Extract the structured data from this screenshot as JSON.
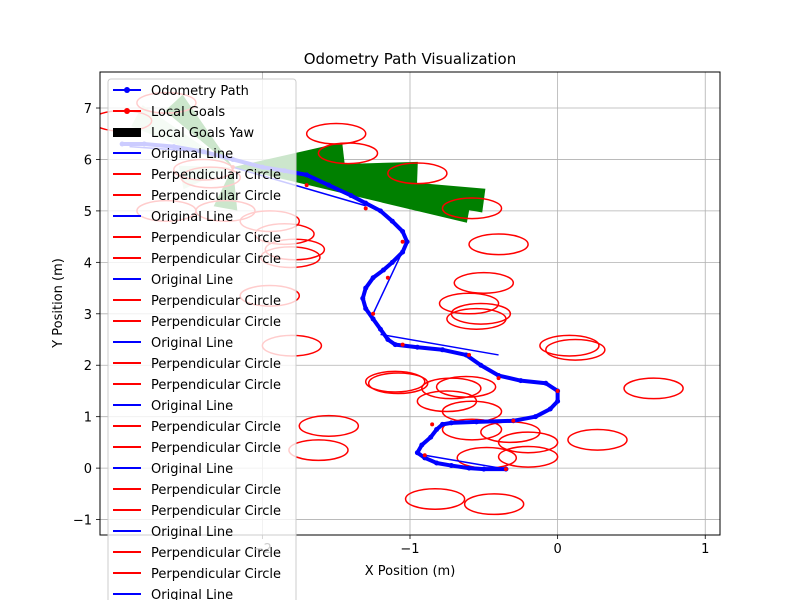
{
  "chart_data": {
    "type": "line",
    "title": "Odometry Path Visualization",
    "xlabel": "X Position (m)",
    "ylabel": "Y Position (m)",
    "xlim": [
      -3.1,
      1.1
    ],
    "ylim": [
      -1.3,
      7.7
    ],
    "x_ticks": [
      -2,
      -1,
      0,
      1
    ],
    "x_tick_labels": [
      "−2",
      "−1",
      "0",
      "1"
    ],
    "y_ticks": [
      -1,
      0,
      1,
      2,
      3,
      4,
      5,
      6,
      7
    ],
    "y_tick_labels": [
      "−1",
      "0",
      "1",
      "2",
      "3",
      "4",
      "5",
      "6",
      "7"
    ],
    "grid": true,
    "legend_position": "upper left",
    "legend": [
      {
        "label": "Odometry Path",
        "kind": "line-marker",
        "color": "#0000ff"
      },
      {
        "label": "Local Goals",
        "kind": "line-marker",
        "color": "#ff0000"
      },
      {
        "label": "Local Goals Yaw",
        "kind": "patch",
        "color": "#000000"
      },
      {
        "label": "Original Line",
        "kind": "line",
        "color": "#0000ff"
      },
      {
        "label": "Perpendicular Circle",
        "kind": "line",
        "color": "#ff0000"
      },
      {
        "label": "Perpendicular Circle",
        "kind": "line",
        "color": "#ff0000"
      },
      {
        "label": "Original Line",
        "kind": "line",
        "color": "#0000ff"
      },
      {
        "label": "Perpendicular Circle",
        "kind": "line",
        "color": "#ff0000"
      },
      {
        "label": "Perpendicular Circle",
        "kind": "line",
        "color": "#ff0000"
      },
      {
        "label": "Original Line",
        "kind": "line",
        "color": "#0000ff"
      },
      {
        "label": "Perpendicular Circle",
        "kind": "line",
        "color": "#ff0000"
      },
      {
        "label": "Perpendicular Circle",
        "kind": "line",
        "color": "#ff0000"
      },
      {
        "label": "Original Line",
        "kind": "line",
        "color": "#0000ff"
      },
      {
        "label": "Perpendicular Circle",
        "kind": "line",
        "color": "#ff0000"
      },
      {
        "label": "Perpendicular Circle",
        "kind": "line",
        "color": "#ff0000"
      },
      {
        "label": "Original Line",
        "kind": "line",
        "color": "#0000ff"
      },
      {
        "label": "Perpendicular Circle",
        "kind": "line",
        "color": "#ff0000"
      },
      {
        "label": "Perpendicular Circle",
        "kind": "line",
        "color": "#ff0000"
      },
      {
        "label": "Original Line",
        "kind": "line",
        "color": "#0000ff"
      },
      {
        "label": "Perpendicular Circle",
        "kind": "line",
        "color": "#ff0000"
      },
      {
        "label": "Perpendicular Circle",
        "kind": "line",
        "color": "#ff0000"
      },
      {
        "label": "Original Line",
        "kind": "line",
        "color": "#0000ff"
      },
      {
        "label": "Perpendicular Circle",
        "kind": "line",
        "color": "#ff0000"
      },
      {
        "label": "Perpendicular Circle",
        "kind": "line",
        "color": "#ff0000"
      },
      {
        "label": "Original Line",
        "kind": "line",
        "color": "#0000ff"
      }
    ],
    "odometry_path": {
      "name": "Odometry Path",
      "color": "#0000ff",
      "x": [
        -0.35,
        -0.5,
        -0.6,
        -0.72,
        -0.82,
        -0.9,
        -0.95,
        -0.92,
        -0.86,
        -0.82,
        -0.78,
        -0.72,
        -0.55,
        -0.3,
        -0.15,
        -0.05,
        0.0,
        0.0,
        -0.08,
        -0.25,
        -0.4,
        -0.52,
        -0.62,
        -0.78,
        -0.95,
        -1.1,
        -1.15,
        -1.2,
        -1.25,
        -1.3,
        -1.32,
        -1.3,
        -1.25,
        -1.18,
        -1.12,
        -1.05,
        -1.02,
        -1.05,
        -1.12,
        -1.2,
        -1.3,
        -1.4,
        -1.55,
        -1.7,
        -1.85,
        -2.0,
        -2.2,
        -2.4,
        -2.6,
        -2.8,
        -2.95
      ],
      "y": [
        -0.02,
        -0.02,
        0.0,
        0.05,
        0.1,
        0.2,
        0.3,
        0.45,
        0.6,
        0.75,
        0.85,
        0.88,
        0.9,
        0.92,
        1.0,
        1.15,
        1.3,
        1.5,
        1.65,
        1.7,
        1.8,
        2.0,
        2.2,
        2.3,
        2.35,
        2.4,
        2.5,
        2.7,
        2.9,
        3.1,
        3.3,
        3.5,
        3.7,
        3.85,
        4.0,
        4.2,
        4.4,
        4.6,
        4.8,
        5.0,
        5.15,
        5.3,
        5.5,
        5.7,
        5.78,
        5.85,
        6.0,
        6.15,
        6.25,
        6.3,
        6.3
      ]
    },
    "local_goals": {
      "name": "Local Goals",
      "color": "#ff0000",
      "x": [
        -0.35,
        -0.9,
        -0.85,
        -0.3,
        0.0,
        -0.4,
        -0.6,
        -1.05,
        -1.25,
        -1.15,
        -1.05,
        -1.3,
        -1.7,
        -2.2
      ],
      "y": [
        -0.02,
        0.25,
        0.85,
        0.92,
        1.5,
        1.75,
        2.2,
        2.4,
        3.0,
        3.7,
        4.4,
        5.05,
        5.5,
        5.85
      ]
    },
    "local_goals_yaw": {
      "name": "Local Goals Yaw",
      "apex": [
        -2.2,
        5.85
      ],
      "wedges": [
        {
          "tip": [
            -2.6,
            7.1
          ],
          "color": "#008000"
        },
        {
          "tip": [
            -1.45,
            6.1
          ],
          "color": "#008000"
        },
        {
          "tip": [
            -0.95,
            5.72
          ],
          "color": "#008000"
        },
        {
          "tip": [
            -0.5,
            5.2
          ],
          "color": "#008000"
        },
        {
          "tip": [
            -0.6,
            5.0
          ],
          "color": "#008000"
        },
        {
          "tip": [
            -2.25,
            5.05
          ],
          "color": "#008000"
        },
        {
          "tip": [
            -2.85,
            6.85
          ],
          "color": "#cde8cd"
        },
        {
          "tip": [
            -2.55,
            5.65
          ],
          "color": "#cde8cd"
        }
      ]
    },
    "original_lines": [
      {
        "x": [
          -2.2,
          -1.3
        ],
        "y": [
          5.85,
          5.1
        ]
      },
      {
        "x": [
          -1.25,
          -1.02
        ],
        "y": [
          3.0,
          4.4
        ]
      },
      {
        "x": [
          -1.2,
          -0.4
        ],
        "y": [
          2.6,
          2.2
        ]
      },
      {
        "x": [
          -0.9,
          -0.35
        ],
        "y": [
          0.25,
          -0.02
        ]
      },
      {
        "x": [
          -2.9,
          -2.4
        ],
        "y": [
          6.25,
          6.15
        ]
      }
    ],
    "perpendicular_circles": {
      "color": "#ff0000",
      "centers_x": [
        -2.65,
        -2.95,
        -2.4,
        -2.35,
        -2.65,
        -2.25,
        -1.95,
        -1.85,
        -1.78,
        -1.81,
        -1.95,
        -1.5,
        -1.42,
        -0.95,
        -0.58,
        -0.4,
        -0.5,
        -0.6,
        -0.52,
        -0.55,
        -1.8,
        0.08,
        0.12,
        0.65,
        -1.1,
        -1.08,
        -0.62,
        -0.72,
        -0.75,
        -0.58,
        -0.58,
        -0.32,
        -0.2,
        -0.2,
        0.27,
        -1.55,
        -1.62,
        -0.48,
        -0.83,
        -0.43
      ],
      "centers_y": [
        7.1,
        6.75,
        5.8,
        5.65,
        5.0,
        5.0,
        4.8,
        4.55,
        4.25,
        4.1,
        3.35,
        6.5,
        6.12,
        5.73,
        5.05,
        4.35,
        3.6,
        3.2,
        3.0,
        2.9,
        2.38,
        2.38,
        2.3,
        1.55,
        1.68,
        1.65,
        1.58,
        1.55,
        1.3,
        1.1,
        0.75,
        0.7,
        0.5,
        0.22,
        0.55,
        0.82,
        0.35,
        0.2,
        -0.6,
        -0.7
      ],
      "rx": 0.2,
      "ry": 0.2
    }
  }
}
